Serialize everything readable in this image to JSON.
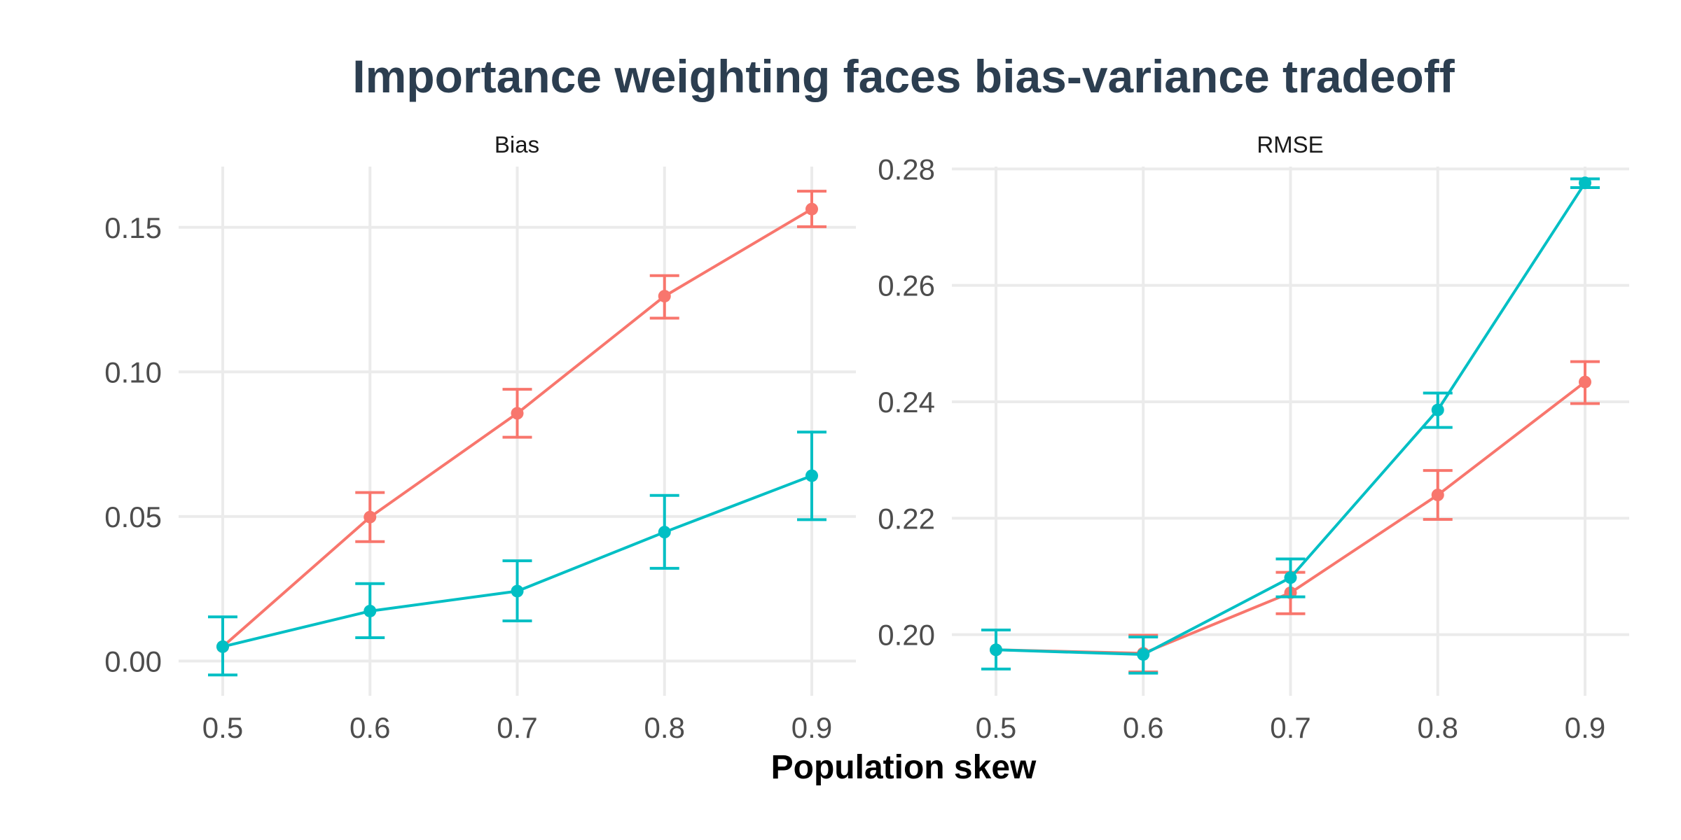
{
  "chart_data": {
    "type": "line",
    "title": "Importance weighting faces bias-variance tradeoff",
    "xlabel": "Population skew",
    "ylabel": "",
    "grid": true,
    "legend": "none",
    "x": [
      0.5,
      0.6,
      0.7,
      0.8,
      0.9
    ],
    "x_tick_labels": [
      "0.5",
      "0.6",
      "0.7",
      "0.8",
      "0.9"
    ],
    "series_colors": [
      "#f8766d",
      "#00bfc4"
    ],
    "panels": [
      {
        "facet_label": "Bias",
        "ylim": [
          -0.012,
          0.171
        ],
        "y_ticks": [
          0.0,
          0.05,
          0.1,
          0.15
        ],
        "y_tick_labels": [
          "0.00",
          "0.05",
          "0.10",
          "0.15"
        ],
        "series": [
          {
            "color": "#f8766d",
            "values": [
              0.005,
              0.0498,
              0.0857,
              0.1262,
              0.1563
            ],
            "err_low": [
              0.005,
              0.0413,
              0.0774,
              0.1186,
              0.1502
            ],
            "err_high": [
              0.005,
              0.0583,
              0.094,
              0.1333,
              0.1625
            ]
          },
          {
            "color": "#00bfc4",
            "values": [
              0.005,
              0.0173,
              0.0242,
              0.0446,
              0.0641
            ],
            "err_low": [
              -0.0048,
              0.0081,
              0.0139,
              0.0321,
              0.0489
            ],
            "err_high": [
              0.0153,
              0.0268,
              0.0347,
              0.0573,
              0.0792
            ]
          }
        ]
      },
      {
        "facet_label": "RMSE",
        "ylim": [
          0.1895,
          0.2804
        ],
        "y_ticks": [
          0.2,
          0.22,
          0.24,
          0.26,
          0.28
        ],
        "y_tick_labels": [
          "0.20",
          "0.22",
          "0.24",
          "0.26",
          "0.28"
        ],
        "series": [
          {
            "color": "#f8766d",
            "values": [
              0.1974,
              0.1968,
              0.2072,
              0.224,
              0.2434
            ],
            "err_low": [
              0.1974,
              0.1936,
              0.2036,
              0.2198,
              0.2397
            ],
            "err_high": [
              0.1974,
              0.1999,
              0.2107,
              0.2282,
              0.2469
            ]
          },
          {
            "color": "#00bfc4",
            "values": [
              0.1974,
              0.1966,
              0.2098,
              0.2386,
              0.2776
            ],
            "err_low": [
              0.1941,
              0.1934,
              0.2065,
              0.2356,
              0.2768
            ],
            "err_high": [
              0.2008,
              0.1996,
              0.213,
              0.2415,
              0.2783
            ]
          }
        ]
      }
    ]
  }
}
